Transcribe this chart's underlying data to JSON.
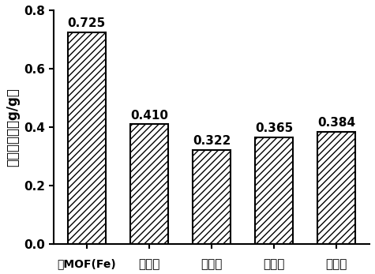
{
  "categories": [
    "绯MOF(Fe)",
    "案例一",
    "案例二",
    "案例三",
    "案例四"
  ],
  "cat0_prefix": "绯",
  "cat0_suffix": "MOF(Fe)",
  "values": [
    0.725,
    0.41,
    0.322,
    0.365,
    0.384
  ],
  "ylabel": "水吸附容量（g/g）",
  "ylim": [
    0.0,
    0.8
  ],
  "yticks": [
    0.0,
    0.2,
    0.4,
    0.6,
    0.8
  ],
  "bar_color": "#ffffff",
  "bar_edgecolor": "#000000",
  "hatch": "////",
  "value_labels": [
    "0.725",
    "0.410",
    "0.322",
    "0.365",
    "0.384"
  ],
  "label_fontsize": 11,
  "tick_fontsize": 11,
  "ylabel_fontsize": 12,
  "bar_linewidth": 1.5
}
